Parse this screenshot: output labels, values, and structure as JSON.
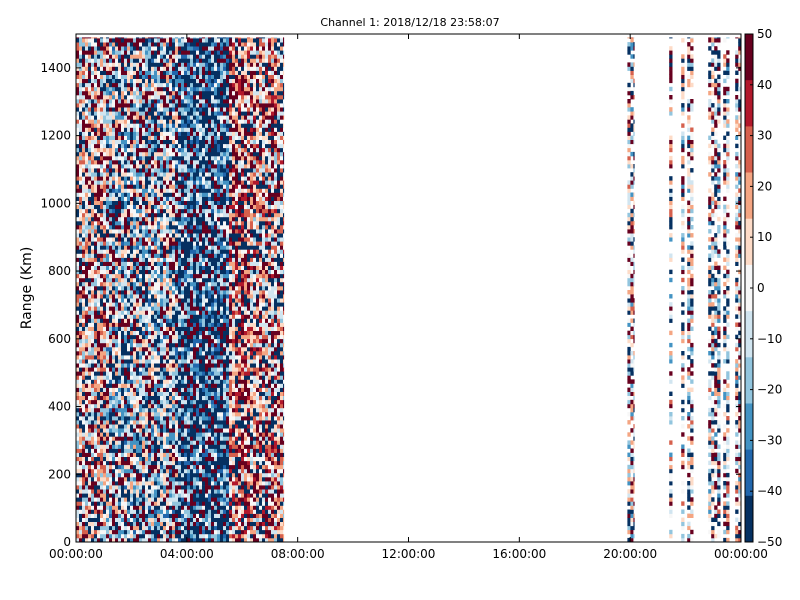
{
  "chart_data": {
    "type": "heatmap",
    "title": "Channel 1: 2018/12/18 23:58:07",
    "xlabel": "",
    "ylabel": "Range (Km)",
    "xlim_hours": [
      0,
      24
    ],
    "ylim": [
      0,
      1500
    ],
    "x_tick_labels": [
      "00:00:00",
      "04:00:00",
      "08:00:00",
      "12:00:00",
      "16:00:00",
      "20:00:00",
      "00:00:00"
    ],
    "x_tick_hours": [
      0,
      4,
      8,
      12,
      16,
      20,
      24
    ],
    "y_ticks": [
      0,
      200,
      400,
      600,
      800,
      1000,
      1200,
      1400
    ],
    "colorbar": {
      "colormap": "RdBu_r",
      "min": -50,
      "max": 50,
      "ticks": [
        -50,
        -40,
        -30,
        -20,
        -10,
        0,
        10,
        20,
        30,
        40,
        50
      ],
      "colors": [
        "#053061",
        "#2166ac",
        "#4393c3",
        "#92c5de",
        "#d1e5f0",
        "#f7f7f7",
        "#fddbc7",
        "#f4a582",
        "#d6604d",
        "#b2182b",
        "#67001f"
      ]
    },
    "data_segments_hours": [
      [
        0,
        7.5
      ],
      [
        19.9,
        20.15
      ],
      [
        21.3,
        24
      ]
    ],
    "grid": false
  }
}
